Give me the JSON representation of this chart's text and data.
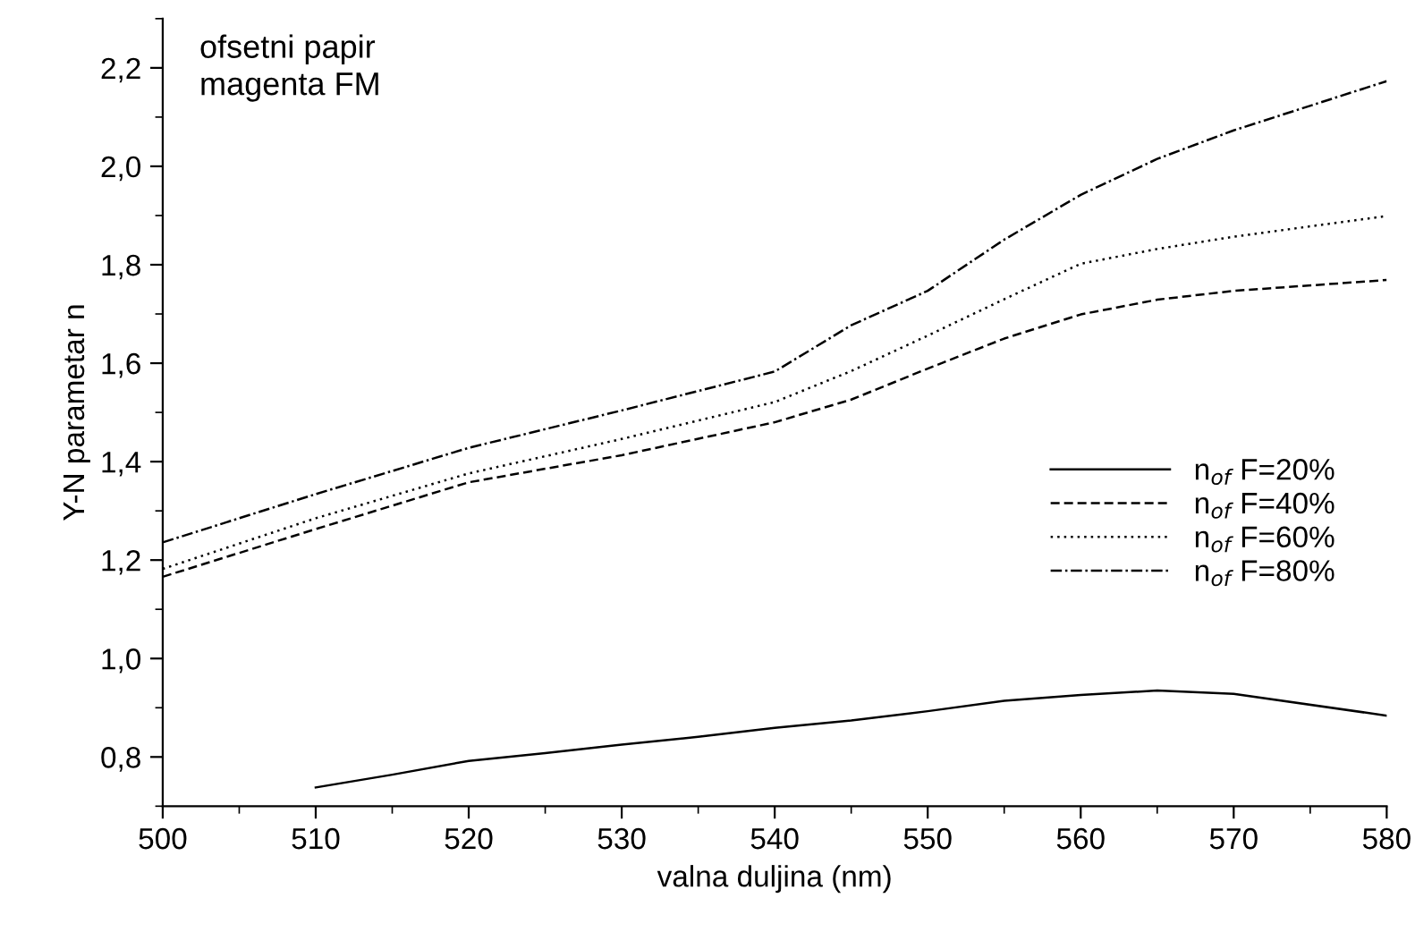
{
  "chart_data": {
    "type": "line",
    "xlabel": "valna duljina (nm)",
    "ylabel": "Y-N parametar n",
    "annotations": [
      "ofsetni papir\nmagenta FM"
    ],
    "xlim": [
      500,
      580
    ],
    "xticks": [
      500,
      510,
      520,
      530,
      540,
      550,
      560,
      570,
      580
    ],
    "ylim": [
      0.7,
      2.3
    ],
    "yticks": [
      {
        "value": 0.8,
        "label": "0,8"
      },
      {
        "value": 1.0,
        "label": "1,0"
      },
      {
        "value": 1.2,
        "label": "1,2"
      },
      {
        "value": 1.4,
        "label": "1,4"
      },
      {
        "value": 1.6,
        "label": "1,6"
      },
      {
        "value": 1.8,
        "label": "1,8"
      },
      {
        "value": 2.0,
        "label": "2,0"
      },
      {
        "value": 2.2,
        "label": "2,2"
      }
    ],
    "grid": false,
    "legend": "right",
    "marker": "none",
    "series": [
      {
        "name": "n$_{of}$ F=20%",
        "color": "#000000",
        "line_style": "solid",
        "x": [
          510,
          515,
          520,
          525,
          530,
          535,
          540,
          545,
          550,
          555,
          560,
          565,
          570,
          580
        ],
        "values": [
          0.738,
          0.764,
          0.792,
          0.808,
          0.825,
          0.841,
          0.859,
          0.874,
          0.893,
          0.914,
          0.926,
          0.935,
          0.928,
          0.884
        ]
      },
      {
        "name": "n$_{of}$ F=40%",
        "color": "#000000",
        "line_style": "dashed",
        "x": [
          500,
          510,
          520,
          530,
          540,
          545,
          550,
          555,
          560,
          565,
          570,
          580
        ],
        "values": [
          1.166,
          1.263,
          1.358,
          1.413,
          1.48,
          1.526,
          1.589,
          1.65,
          1.699,
          1.729,
          1.747,
          1.769
        ]
      },
      {
        "name": "n$_{of}$ F=60%",
        "color": "#000000",
        "line_style": "dotted",
        "x": [
          500,
          510,
          520,
          530,
          540,
          545,
          550,
          555,
          560,
          565,
          570,
          580
        ],
        "values": [
          1.182,
          1.285,
          1.376,
          1.446,
          1.521,
          1.584,
          1.656,
          1.73,
          1.802,
          1.832,
          1.857,
          1.899
        ]
      },
      {
        "name": "n$_{of}$ F=80%",
        "color": "#000000",
        "line_style": "dashdot",
        "x": [
          500,
          510,
          520,
          530,
          540,
          545,
          550,
          555,
          560,
          565,
          570,
          580
        ],
        "values": [
          1.236,
          1.334,
          1.428,
          1.504,
          1.583,
          1.677,
          1.747,
          1.851,
          1.942,
          2.015,
          2.073,
          2.173
        ]
      }
    ]
  }
}
